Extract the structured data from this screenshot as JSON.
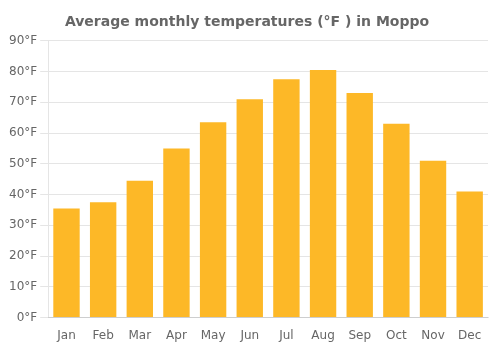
{
  "chart_data": {
    "type": "bar",
    "title": "Average monthly temperatures (°F ) in Moppo",
    "categories": [
      "Jan",
      "Feb",
      "Mar",
      "Apr",
      "May",
      "Jun",
      "Jul",
      "Aug",
      "Sep",
      "Oct",
      "Nov",
      "Dec"
    ],
    "values": [
      35.5,
      37.5,
      44.5,
      55.0,
      63.5,
      71.0,
      77.5,
      80.5,
      73.0,
      63.0,
      51.0,
      41.0
    ],
    "color": "#FDB827",
    "ylim": [
      0,
      90
    ],
    "yticks": [
      {
        "value": 0,
        "label": "0°F"
      },
      {
        "value": 10,
        "label": "10°F"
      },
      {
        "value": 20,
        "label": "20°F"
      },
      {
        "value": 30,
        "label": "30°F"
      },
      {
        "value": 40,
        "label": "40°F"
      },
      {
        "value": 50,
        "label": "50°F"
      },
      {
        "value": 60,
        "label": "60°F"
      },
      {
        "value": 70,
        "label": "70°F"
      },
      {
        "value": 80,
        "label": "80°F"
      },
      {
        "value": 90,
        "label": "90°F"
      }
    ],
    "grid": true
  }
}
